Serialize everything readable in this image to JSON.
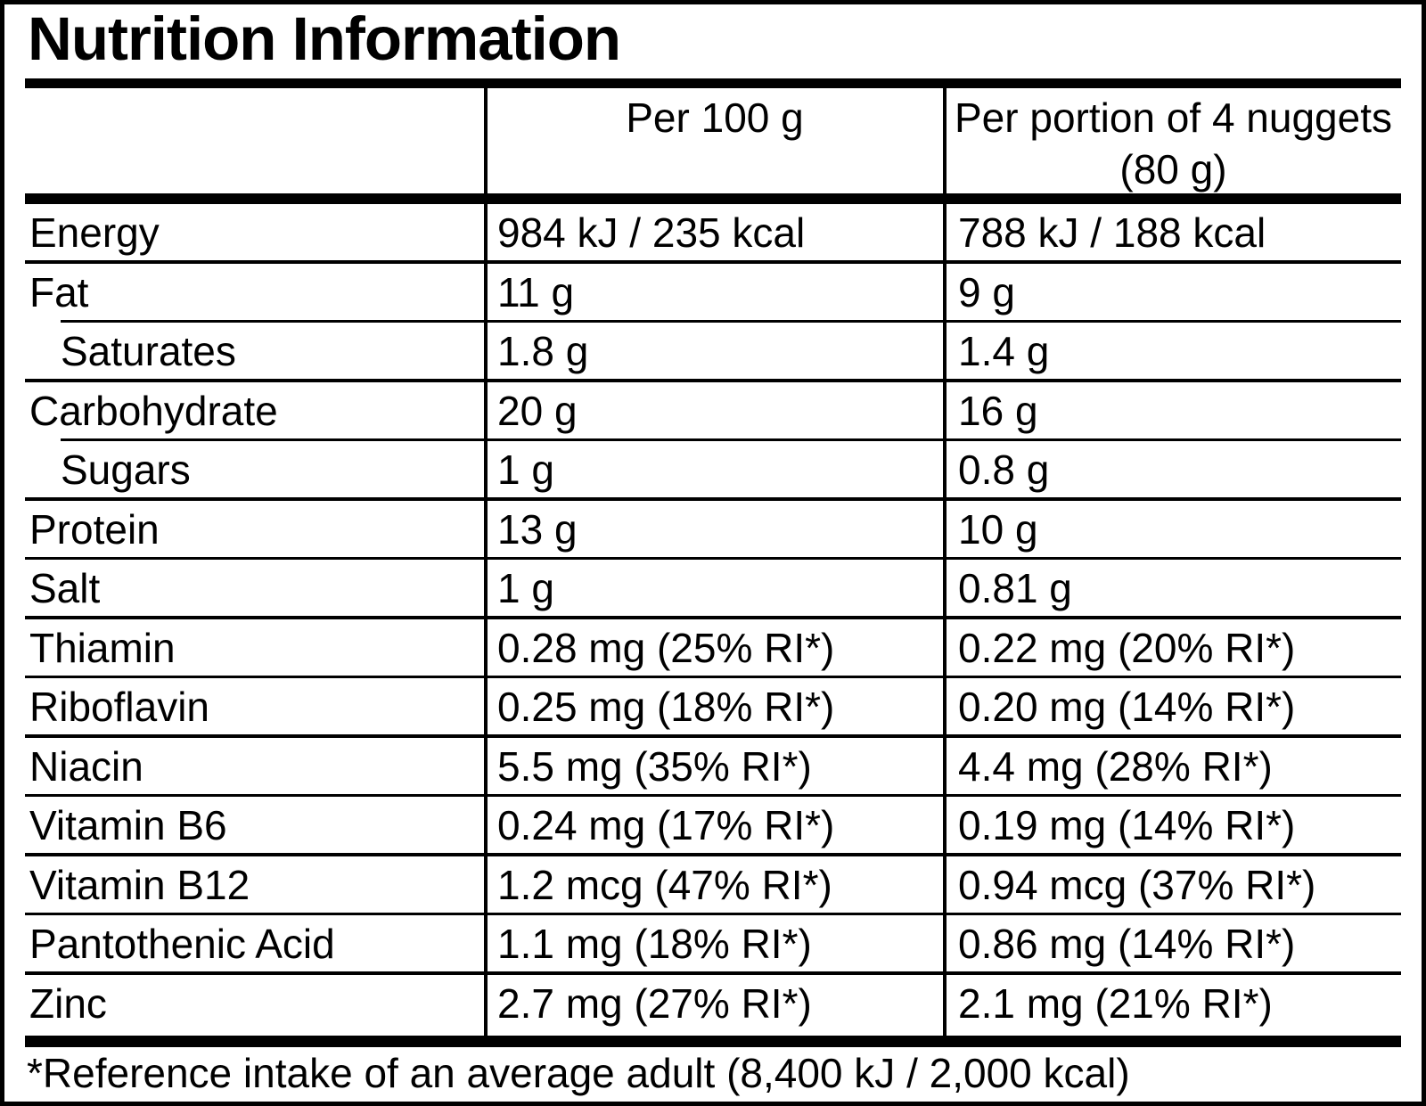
{
  "title": "Nutrition Information",
  "table": {
    "columns": {
      "per_100g": "Per 100 g",
      "per_portion": "Per portion of 4 nuggets (80 g)"
    },
    "rows": [
      {
        "label": "Energy",
        "per_100g": "984 kJ / 235 kcal",
        "per_portion": "788 kJ / 188 kcal",
        "indent": false
      },
      {
        "label": "Fat",
        "per_100g": "11 g",
        "per_portion": "9 g",
        "indent": false
      },
      {
        "label": "Saturates",
        "per_100g": "1.8 g",
        "per_portion": "1.4 g",
        "indent": true
      },
      {
        "label": "Carbohydrate",
        "per_100g": "20 g",
        "per_portion": "16 g",
        "indent": false
      },
      {
        "label": "Sugars",
        "per_100g": "1 g",
        "per_portion": "0.8 g",
        "indent": true
      },
      {
        "label": "Protein",
        "per_100g": "13 g",
        "per_portion": "10 g",
        "indent": false
      },
      {
        "label": "Salt",
        "per_100g": "1 g",
        "per_portion": "0.81 g",
        "indent": false
      },
      {
        "label": "Thiamin",
        "per_100g": "0.28 mg (25% RI*)",
        "per_portion": "0.22 mg (20% RI*)",
        "indent": false
      },
      {
        "label": "Riboflavin",
        "per_100g": "0.25 mg (18% RI*)",
        "per_portion": "0.20 mg (14% RI*)",
        "indent": false
      },
      {
        "label": "Niacin",
        "per_100g": "5.5 mg (35% RI*)",
        "per_portion": "4.4 mg (28% RI*)",
        "indent": false
      },
      {
        "label": "Vitamin B6",
        "per_100g": "0.24 mg (17% RI*)",
        "per_portion": "0.19 mg (14% RI*)",
        "indent": false
      },
      {
        "label": "Vitamin B12",
        "per_100g": "1.2 mcg (47% RI*)",
        "per_portion": "0.94 mcg (37% RI*)",
        "indent": false
      },
      {
        "label": "Pantothenic Acid",
        "per_100g": "1.1 mg (18% RI*)",
        "per_portion": "0.86 mg (14% RI*)",
        "indent": false
      },
      {
        "label": "Zinc",
        "per_100g": "2.7 mg (27% RI*)",
        "per_portion": "2.1 mg (21% RI*)",
        "indent": false
      }
    ]
  },
  "footnote": "*Reference intake of an average adult (8,400 kJ / 2,000 kcal)",
  "colors": {
    "text": "#000000",
    "background": "#ffffff",
    "rule": "#000000"
  }
}
